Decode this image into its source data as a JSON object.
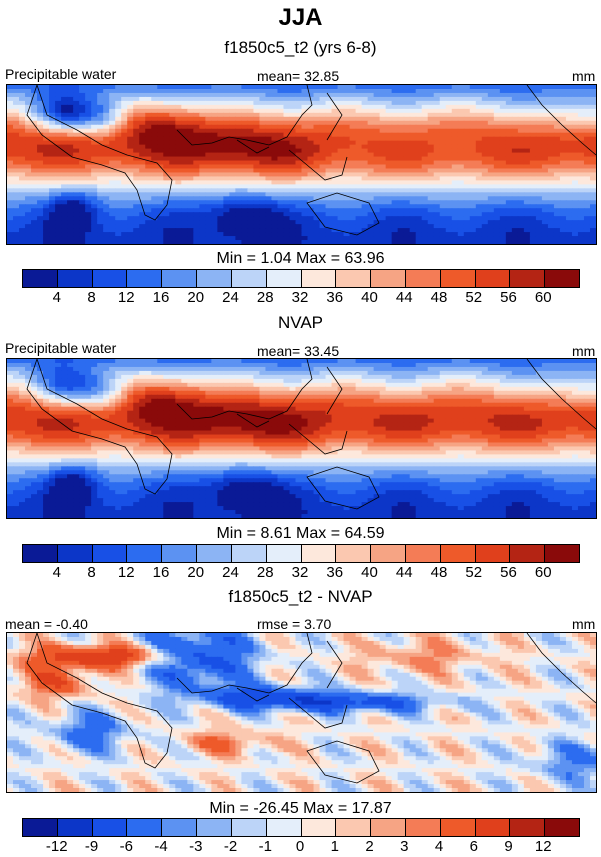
{
  "figure": {
    "title": "JJA"
  },
  "panels": [
    {
      "title": "f1850c5_t2 (yrs 6-8)",
      "left_label": "Precipitable water",
      "center_label": "mean=  32.85",
      "units": "mm",
      "minmax": "Min =   1.04 Max =  63.96",
      "field": "model"
    },
    {
      "title": "NVAP",
      "left_label": "Precipitable water",
      "center_label": "mean=  33.45",
      "units": "mm",
      "minmax": "Min =   8.61 Max =  64.59",
      "field": "obs"
    },
    {
      "title": "f1850c5_t2 - NVAP",
      "left_label": "mean =  -0.40",
      "center_label": "rmse =   3.70",
      "units": "mm",
      "minmax": "Min = -26.45 Max =  17.87",
      "field": "diff"
    }
  ],
  "colorbars": {
    "absolute": {
      "levels": [
        "4",
        "8",
        "12",
        "16",
        "20",
        "24",
        "28",
        "32",
        "36",
        "40",
        "44",
        "48",
        "52",
        "56",
        "60"
      ],
      "colors": [
        "#0a1a96",
        "#0c36c8",
        "#1850e6",
        "#2c6cf0",
        "#5c92f2",
        "#8cb4f4",
        "#bcd4f8",
        "#e4eefa",
        "#fde8dc",
        "#fbc8b0",
        "#f6a484",
        "#f47c56",
        "#ee5a2a",
        "#e0401c",
        "#b42414",
        "#8a0a0a"
      ]
    },
    "difference": {
      "levels": [
        "-12",
        "-9",
        "-6",
        "-4",
        "-3",
        "-2",
        "-1",
        "0",
        "1",
        "2",
        "3",
        "4",
        "6",
        "9",
        "12"
      ],
      "colors": [
        "#0a1a96",
        "#0c36c8",
        "#1850e6",
        "#2c6cf0",
        "#5c92f2",
        "#8cb4f4",
        "#bcd4f8",
        "#e4eefa",
        "#fde8dc",
        "#fbc8b0",
        "#f6a484",
        "#f47c56",
        "#ee5a2a",
        "#e0401c",
        "#b42414",
        "#8a0a0a"
      ]
    }
  },
  "chart_data": [
    {
      "type": "heatmap",
      "title": "f1850c5_t2 (yrs 6-8)",
      "variable": "Precipitable water",
      "units": "mm",
      "mean": 32.85,
      "min": 1.04,
      "max": 63.96,
      "season": "JJA",
      "contour_levels": [
        4,
        8,
        12,
        16,
        20,
        24,
        28,
        32,
        36,
        40,
        44,
        48,
        52,
        56,
        60
      ]
    },
    {
      "type": "heatmap",
      "title": "NVAP",
      "variable": "Precipitable water",
      "units": "mm",
      "mean": 33.45,
      "min": 8.61,
      "max": 64.59,
      "season": "JJA",
      "contour_levels": [
        4,
        8,
        12,
        16,
        20,
        24,
        28,
        32,
        36,
        40,
        44,
        48,
        52,
        56,
        60
      ]
    },
    {
      "type": "heatmap",
      "title": "f1850c5_t2 - NVAP",
      "units": "mm",
      "mean": -0.4,
      "rmse": 3.7,
      "min": -26.45,
      "max": 17.87,
      "season": "JJA",
      "contour_levels": [
        -12,
        -9,
        -6,
        -4,
        -3,
        -2,
        -1,
        0,
        1,
        2,
        3,
        4,
        6,
        9,
        12
      ]
    }
  ]
}
